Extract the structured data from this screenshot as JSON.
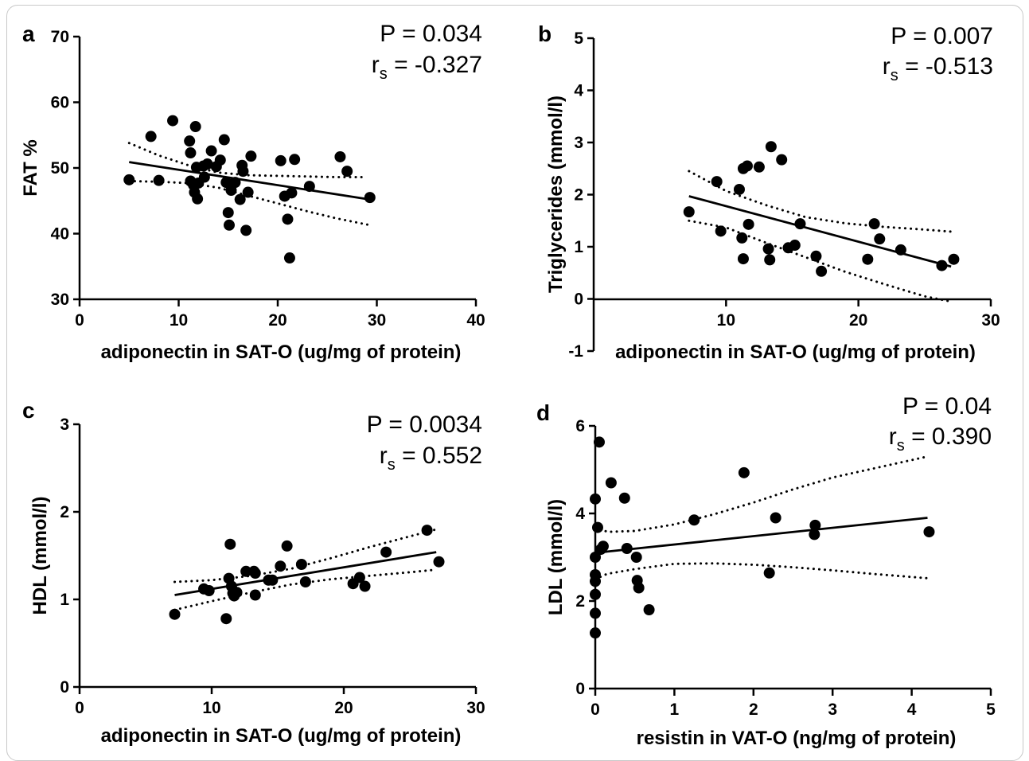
{
  "chart_data": [
    {
      "panel": "a",
      "type": "scatter",
      "xlabel": "adiponectin in SAT-O (ug/mg of protein)",
      "ylabel": "FAT %",
      "xlim": [
        0,
        40
      ],
      "ylim": [
        30,
        70
      ],
      "xticks": [
        0,
        10,
        20,
        30,
        40
      ],
      "yticks": [
        30,
        40,
        50,
        60,
        70
      ],
      "p_text": "P = 0.034",
      "r_symbol": "r",
      "r_sub": "s",
      "r_value": " = -0.327",
      "fit": {
        "x": [
          5,
          29.3
        ],
        "y": [
          50.9,
          45.2
        ]
      },
      "ci_upper": [
        [
          5,
          53.8
        ],
        [
          8,
          51.9
        ],
        [
          11,
          50.4
        ],
        [
          14,
          49.3
        ],
        [
          17,
          48.9
        ],
        [
          20,
          48.8
        ],
        [
          23,
          48.7
        ],
        [
          26,
          48.6
        ],
        [
          28.8,
          48.6
        ]
      ],
      "ci_lower": [
        [
          5,
          48.0
        ],
        [
          8,
          47.9
        ],
        [
          11,
          47.7
        ],
        [
          14,
          47.0
        ],
        [
          17,
          45.8
        ],
        [
          20,
          44.6
        ],
        [
          23,
          43.4
        ],
        [
          26,
          42.3
        ],
        [
          29.3,
          41.3
        ]
      ],
      "points": [
        [
          5,
          48.2
        ],
        [
          7.2,
          54.8
        ],
        [
          8,
          48.1
        ],
        [
          9.4,
          57.2
        ],
        [
          11.1,
          54.1
        ],
        [
          11.2,
          52.3
        ],
        [
          11.2,
          48.0
        ],
        [
          11.5,
          47.4
        ],
        [
          11.6,
          46.3
        ],
        [
          11.7,
          56.3
        ],
        [
          11.8,
          50.1
        ],
        [
          11.9,
          45.3
        ],
        [
          12.0,
          47.7
        ],
        [
          12.5,
          50.3
        ],
        [
          12.6,
          48.6
        ],
        [
          12.9,
          50.6
        ],
        [
          13.3,
          52.6
        ],
        [
          13.8,
          50.2
        ],
        [
          14.2,
          51.2
        ],
        [
          14.6,
          54.3
        ],
        [
          14.8,
          47.8
        ],
        [
          15.0,
          43.2
        ],
        [
          15.1,
          41.3
        ],
        [
          15.3,
          46.6
        ],
        [
          15.7,
          47.8
        ],
        [
          16.2,
          45.2
        ],
        [
          16.4,
          50.4
        ],
        [
          16.5,
          49.5
        ],
        [
          16.8,
          40.5
        ],
        [
          17.0,
          46.3
        ],
        [
          17.3,
          51.8
        ],
        [
          20.3,
          51.1
        ],
        [
          20.7,
          45.7
        ],
        [
          21.0,
          42.2
        ],
        [
          21.2,
          36.3
        ],
        [
          21.4,
          46.2
        ],
        [
          21.7,
          51.3
        ],
        [
          23.2,
          47.2
        ],
        [
          26.3,
          51.7
        ],
        [
          27.0,
          49.5
        ],
        [
          29.3,
          45.5
        ]
      ]
    },
    {
      "panel": "b",
      "type": "scatter",
      "xlabel": "adiponectin in SAT-O (ug/mg of protein)",
      "ylabel": "Triglycerides (mmol/l)",
      "xlim": [
        0,
        30
      ],
      "ylim": [
        -1,
        5
      ],
      "xticks": [
        10,
        20,
        30
      ],
      "yticks": [
        -1,
        0,
        1,
        2,
        3,
        4,
        5
      ],
      "p_text": "P = 0.007",
      "r_symbol": "r",
      "r_sub": "s",
      "r_value": " = -0.513",
      "fit": {
        "x": [
          7.2,
          27
        ],
        "y": [
          1.97,
          0.62
        ]
      },
      "ci_upper": [
        [
          7.2,
          2.45
        ],
        [
          10,
          2.07
        ],
        [
          13,
          1.8
        ],
        [
          16,
          1.57
        ],
        [
          19,
          1.45
        ],
        [
          22,
          1.38
        ],
        [
          25,
          1.33
        ],
        [
          27,
          1.29
        ]
      ],
      "ci_lower": [
        [
          7.2,
          1.5
        ],
        [
          10,
          1.37
        ],
        [
          13,
          1.08
        ],
        [
          16,
          0.8
        ],
        [
          19,
          0.52
        ],
        [
          22,
          0.28
        ],
        [
          25,
          0.05
        ],
        [
          27,
          -0.05
        ]
      ],
      "points": [
        [
          7.2,
          1.67
        ],
        [
          9.3,
          2.25
        ],
        [
          9.6,
          1.3
        ],
        [
          11.0,
          2.1
        ],
        [
          11.2,
          1.17
        ],
        [
          11.3,
          0.77
        ],
        [
          11.3,
          2.5
        ],
        [
          11.6,
          2.55
        ],
        [
          11.7,
          1.43
        ],
        [
          12.5,
          2.53
        ],
        [
          13.2,
          0.96
        ],
        [
          13.3,
          0.75
        ],
        [
          13.4,
          2.92
        ],
        [
          14.2,
          2.67
        ],
        [
          14.7,
          0.98
        ],
        [
          15.2,
          1.03
        ],
        [
          15.6,
          1.44
        ],
        [
          16.8,
          0.82
        ],
        [
          17.2,
          0.53
        ],
        [
          20.7,
          0.76
        ],
        [
          21.2,
          1.44
        ],
        [
          21.6,
          1.15
        ],
        [
          23.2,
          0.94
        ],
        [
          26.3,
          0.64
        ],
        [
          27.2,
          0.76
        ]
      ]
    },
    {
      "panel": "c",
      "type": "scatter",
      "xlabel": "adiponectin in SAT-O (ug/mg of protein)",
      "ylabel": "HDL (mmol/l)",
      "xlim": [
        0,
        30
      ],
      "ylim": [
        0,
        3
      ],
      "xticks": [
        0,
        10,
        20,
        30
      ],
      "yticks": [
        0,
        1,
        2,
        3
      ],
      "p_text": "P = 0.0034",
      "r_symbol": "r",
      "r_sub": "s",
      "r_value": " = 0.552",
      "fit": {
        "x": [
          7.2,
          27
        ],
        "y": [
          1.05,
          1.54
        ]
      },
      "ci_upper": [
        [
          7.2,
          1.2
        ],
        [
          10,
          1.22
        ],
        [
          13,
          1.27
        ],
        [
          16,
          1.35
        ],
        [
          19,
          1.47
        ],
        [
          22,
          1.6
        ],
        [
          25,
          1.72
        ],
        [
          27,
          1.8
        ]
      ],
      "ci_lower": [
        [
          7.2,
          0.88
        ],
        [
          10,
          0.98
        ],
        [
          13,
          1.08
        ],
        [
          16,
          1.17
        ],
        [
          19,
          1.23
        ],
        [
          22,
          1.27
        ],
        [
          25,
          1.31
        ],
        [
          27,
          1.34
        ]
      ],
      "points": [
        [
          7.2,
          0.83
        ],
        [
          9.4,
          1.12
        ],
        [
          9.8,
          1.1
        ],
        [
          11.1,
          0.78
        ],
        [
          11.3,
          1.24
        ],
        [
          11.4,
          1.63
        ],
        [
          11.5,
          1.15
        ],
        [
          11.6,
          1.07
        ],
        [
          11.7,
          1.04
        ],
        [
          11.9,
          1.08
        ],
        [
          12.6,
          1.32
        ],
        [
          13.2,
          1.32
        ],
        [
          13.3,
          1.05
        ],
        [
          13.3,
          1.3
        ],
        [
          14.3,
          1.22
        ],
        [
          14.6,
          1.22
        ],
        [
          15.2,
          1.38
        ],
        [
          15.7,
          1.61
        ],
        [
          16.8,
          1.4
        ],
        [
          17.1,
          1.2
        ],
        [
          20.7,
          1.18
        ],
        [
          21.2,
          1.25
        ],
        [
          21.6,
          1.15
        ],
        [
          23.2,
          1.54
        ],
        [
          26.3,
          1.79
        ],
        [
          27.2,
          1.43
        ]
      ]
    },
    {
      "panel": "d",
      "type": "scatter",
      "xlabel": "resistin in VAT-O (ng/mg of protein)",
      "ylabel": "LDL (mmol/l)",
      "xlim": [
        0,
        5
      ],
      "ylim": [
        0,
        6
      ],
      "xticks": [
        0,
        1,
        2,
        3,
        4,
        5
      ],
      "yticks": [
        0,
        2,
        4,
        6
      ],
      "p_text": "P = 0.04",
      "r_symbol": "r",
      "r_sub": "s",
      "r_value": " = 0.390",
      "fit": {
        "x": [
          0,
          4.2
        ],
        "y": [
          3.1,
          3.9
        ]
      },
      "ci_upper": [
        [
          0,
          3.7
        ],
        [
          0.15,
          3.58
        ],
        [
          0.5,
          3.6
        ],
        [
          1.0,
          3.75
        ],
        [
          1.5,
          3.98
        ],
        [
          2.0,
          4.25
        ],
        [
          2.5,
          4.55
        ],
        [
          3.0,
          4.82
        ],
        [
          3.5,
          5.02
        ],
        [
          4.2,
          5.3
        ]
      ],
      "ci_lower": [
        [
          0,
          2.5
        ],
        [
          0.15,
          2.62
        ],
        [
          0.5,
          2.73
        ],
        [
          1.0,
          2.85
        ],
        [
          1.5,
          2.86
        ],
        [
          2.0,
          2.83
        ],
        [
          2.5,
          2.77
        ],
        [
          3.0,
          2.7
        ],
        [
          3.5,
          2.62
        ],
        [
          4.2,
          2.52
        ]
      ],
      "points": [
        [
          0.0,
          4.33
        ],
        [
          0.0,
          3.0
        ],
        [
          0.0,
          2.6
        ],
        [
          0.0,
          2.45
        ],
        [
          0.0,
          2.15
        ],
        [
          0.0,
          1.72
        ],
        [
          0.0,
          1.27
        ],
        [
          0.03,
          3.68
        ],
        [
          0.05,
          5.63
        ],
        [
          0.07,
          3.18
        ],
        [
          0.1,
          3.25
        ],
        [
          0.2,
          4.7
        ],
        [
          0.37,
          4.35
        ],
        [
          0.4,
          3.2
        ],
        [
          0.52,
          3.0
        ],
        [
          0.53,
          2.47
        ],
        [
          0.55,
          2.3
        ],
        [
          0.68,
          1.8
        ],
        [
          1.25,
          3.85
        ],
        [
          1.88,
          4.93
        ],
        [
          2.2,
          2.64
        ],
        [
          2.28,
          3.9
        ],
        [
          2.77,
          3.52
        ],
        [
          2.78,
          3.73
        ],
        [
          4.22,
          3.58
        ]
      ]
    }
  ]
}
